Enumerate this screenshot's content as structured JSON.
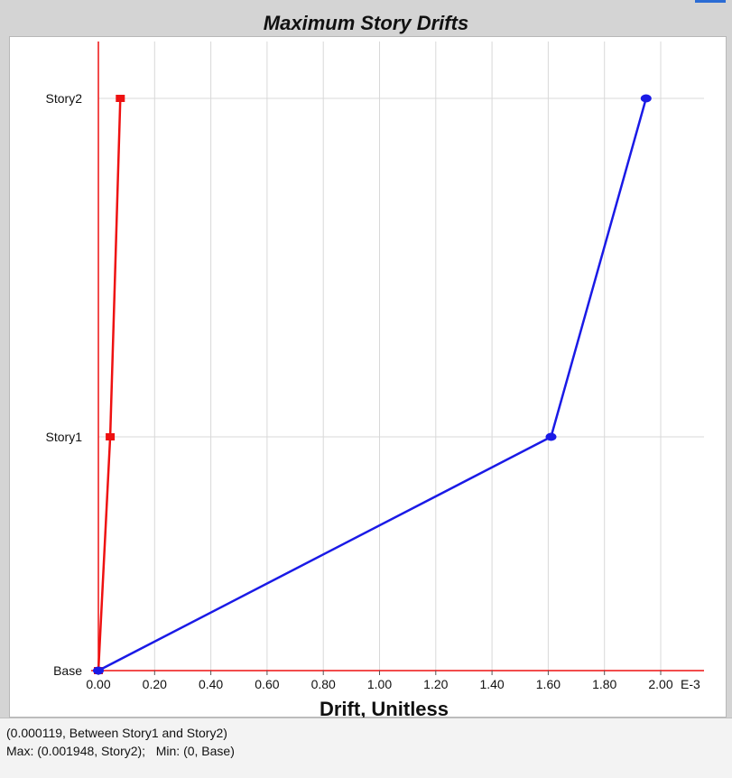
{
  "window": {
    "title": "Maximum Story Drifts"
  },
  "status": {
    "line1": "(0.000119, Between Story1 and Story2)",
    "line2": "Max: (0.001948, Story2);   Min: (0, Base)"
  },
  "colors": {
    "series_red": "#ee1111",
    "series_blue": "#1a1ae6",
    "grid": "#d8d8d8",
    "axis": "#ee1111"
  },
  "chart_data": {
    "type": "line",
    "title": "Maximum Story Drifts",
    "xlabel": "Drift, Unitless",
    "x_multiplier_label": "E-3",
    "xlim": [
      0,
      0.002
    ],
    "x_ticks": [
      {
        "value": 0.0,
        "label": "0.00"
      },
      {
        "value": 0.0002,
        "label": "0.20"
      },
      {
        "value": 0.0004,
        "label": "0.40"
      },
      {
        "value": 0.0006,
        "label": "0.60"
      },
      {
        "value": 0.0008,
        "label": "0.80"
      },
      {
        "value": 0.001,
        "label": "1.00"
      },
      {
        "value": 0.0012,
        "label": "1.20"
      },
      {
        "value": 0.0014,
        "label": "1.40"
      },
      {
        "value": 0.0016,
        "label": "1.60"
      },
      {
        "value": 0.0018,
        "label": "1.80"
      },
      {
        "value": 0.002,
        "label": "2.00"
      }
    ],
    "y_categories": [
      "Base",
      "Story1",
      "Story2"
    ],
    "grid": true,
    "series": [
      {
        "color": "#ee1111",
        "marker": "square",
        "points": [
          {
            "story": "Base",
            "x": 0.0
          },
          {
            "story": "Story1",
            "x": 4.2e-05
          },
          {
            "story": "Story2",
            "x": 7.8e-05
          }
        ]
      },
      {
        "color": "#1a1ae6",
        "marker": "circle",
        "points": [
          {
            "story": "Base",
            "x": 0.0
          },
          {
            "story": "Story1",
            "x": 0.00161
          },
          {
            "story": "Story2",
            "x": 0.001948
          }
        ]
      }
    ]
  }
}
